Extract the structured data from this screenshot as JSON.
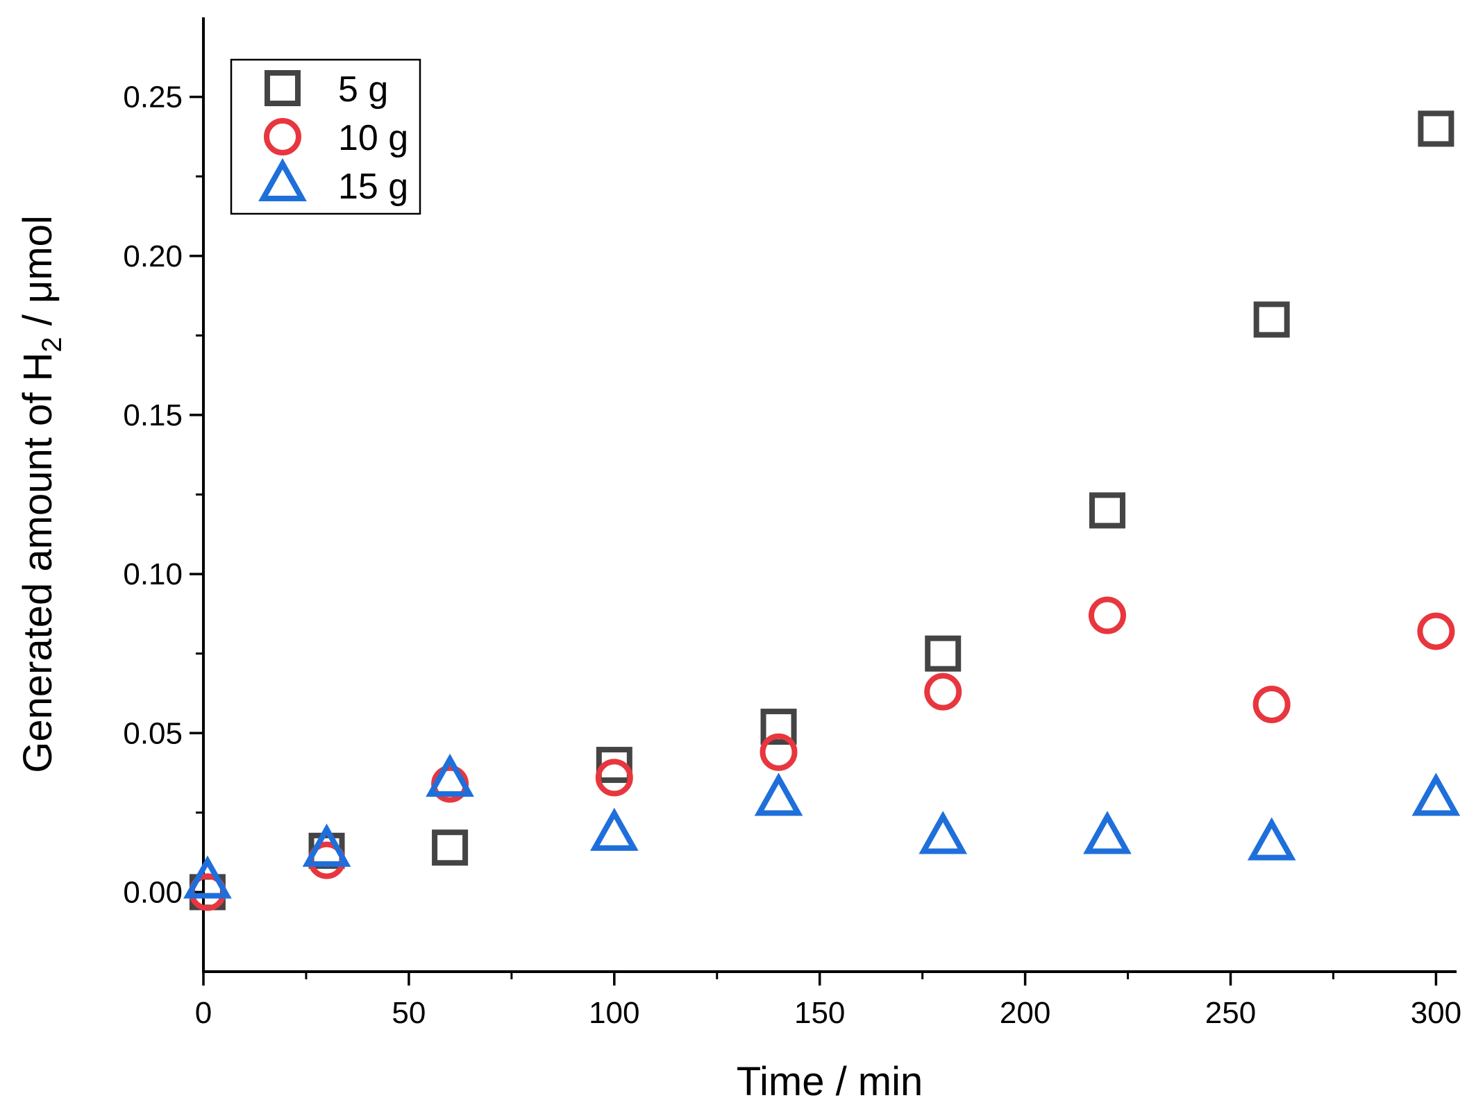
{
  "chart_data": {
    "type": "scatter",
    "title": "",
    "xlabel": "Time / min",
    "ylabel": {
      "prefix": "Generated amount of H",
      "subscript": "2",
      "suffix": " / μmol"
    },
    "xlim": [
      0,
      305
    ],
    "ylim": [
      -0.025,
      0.275
    ],
    "xticks": [
      0,
      50,
      100,
      150,
      200,
      250,
      300
    ],
    "xtick_labels": [
      "0",
      "50",
      "100",
      "150",
      "200",
      "250",
      "300"
    ],
    "yticks": [
      0.0,
      0.05,
      0.1,
      0.15,
      0.2,
      0.25
    ],
    "ytick_labels": [
      "0.00",
      "0.05",
      "0.10",
      "0.15",
      "0.20",
      "0.25"
    ],
    "grid": false,
    "legend_position": "top-left",
    "series": [
      {
        "name": "5 g",
        "marker": "square",
        "color": "#444444",
        "x": [
          1,
          30,
          60,
          100,
          140,
          180,
          220,
          260,
          300
        ],
        "y": [
          0.0,
          0.013,
          0.014,
          0.04,
          0.052,
          0.075,
          0.12,
          0.18,
          0.24
        ]
      },
      {
        "name": "10 g",
        "marker": "circle",
        "color": "#e8363f",
        "x": [
          1,
          30,
          60,
          100,
          140,
          180,
          220,
          260,
          300
        ],
        "y": [
          0.0,
          0.01,
          0.034,
          0.036,
          0.044,
          0.063,
          0.087,
          0.059,
          0.082
        ]
      },
      {
        "name": "15 g",
        "marker": "triangle",
        "color": "#1f6fdb",
        "x": [
          1,
          30,
          60,
          100,
          140,
          180,
          220,
          260,
          300
        ],
        "y": [
          0.003,
          0.013,
          0.035,
          0.018,
          0.029,
          0.017,
          0.017,
          0.015,
          0.029
        ]
      }
    ]
  }
}
